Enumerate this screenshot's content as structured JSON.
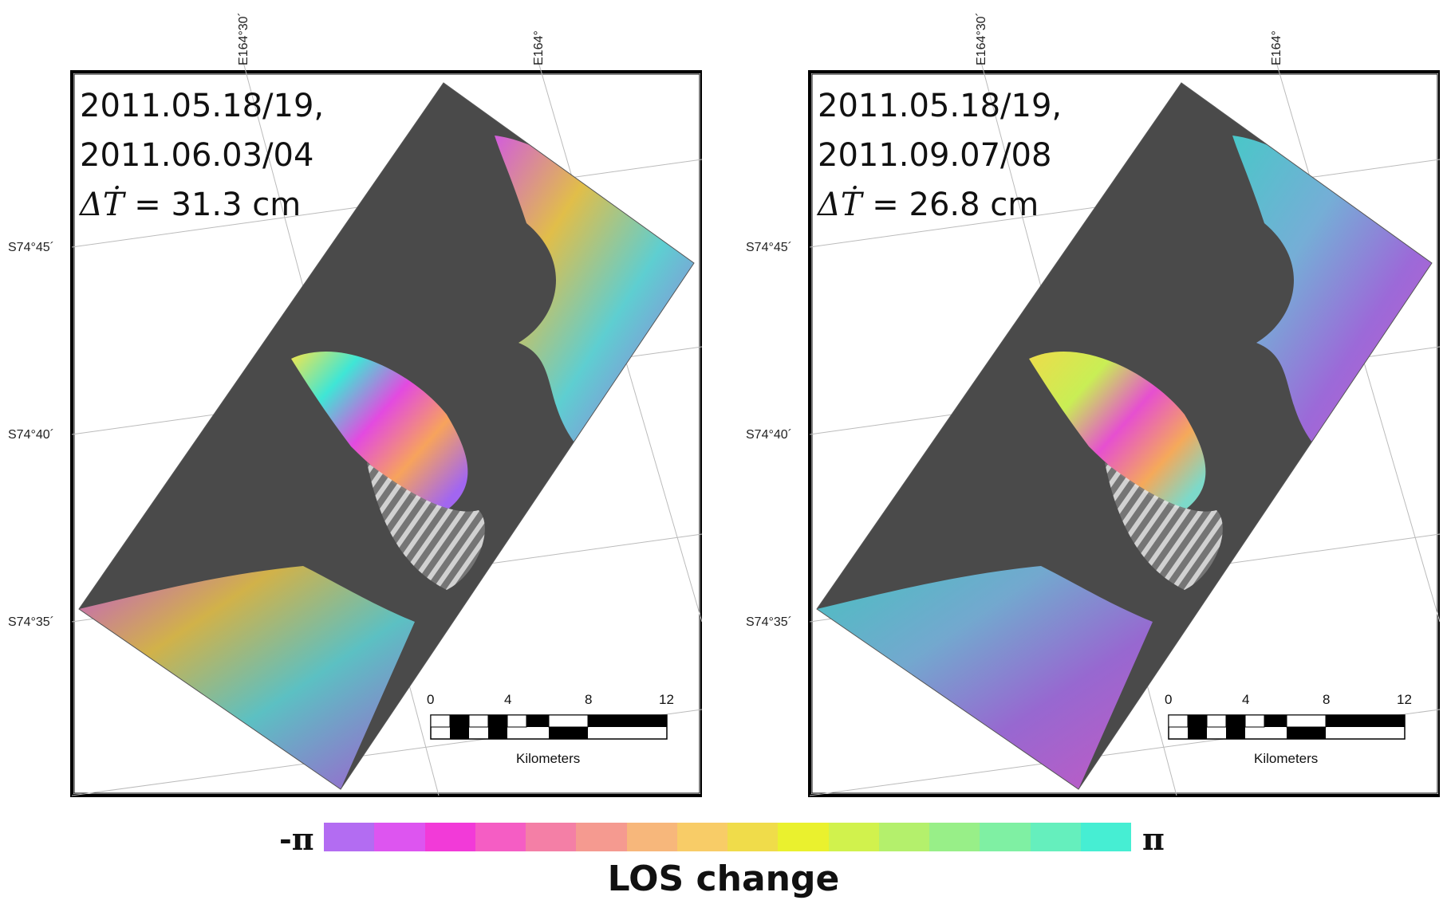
{
  "panels": [
    {
      "line1": "2011.05.18/19,",
      "line2": "2011.06.03/04",
      "delta_symbol": "ΔṪ",
      "delta_value": " = 31.3 cm",
      "scheme": "magenta"
    },
    {
      "line1": "2011.05.18/19,",
      "line2": "2011.09.07/08",
      "delta_symbol": "ΔṪ",
      "delta_value": " = 26.8 cm",
      "scheme": "cyan"
    }
  ],
  "latitudes": [
    "S74°45´",
    "S74°40´",
    "S74°35´"
  ],
  "longitudes": [
    "E164°30´",
    "E164°"
  ],
  "scale_bar": {
    "ticks": [
      "0",
      "4",
      "8",
      "12"
    ],
    "unit": "Kilometers"
  },
  "colorbar": {
    "min_label": "-π",
    "max_label": "π",
    "label": "LOS change",
    "colors": [
      "#b36cf2",
      "#dd55f0",
      "#f23ad8",
      "#f55dc4",
      "#f47fa6",
      "#f59a90",
      "#f7b77b",
      "#f8cc67",
      "#f0dc4a",
      "#eaf12e",
      "#d1f24d",
      "#b4f06c",
      "#98ef88",
      "#7ff0a3",
      "#65efbd",
      "#46eed3"
    ]
  }
}
